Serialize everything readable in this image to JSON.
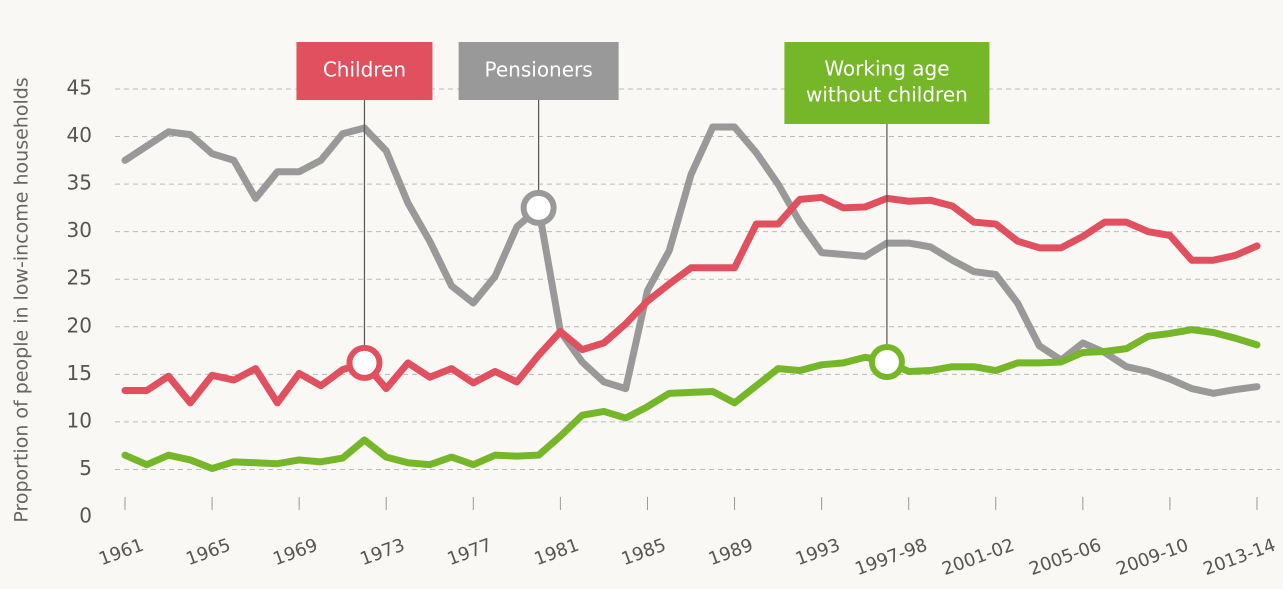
{
  "chart_data": {
    "type": "line",
    "y_label": "Proportion of people in low-income households",
    "categories": [
      "1961",
      null,
      null,
      null,
      "1965",
      null,
      null,
      null,
      "1969",
      null,
      null,
      null,
      "1973",
      null,
      null,
      null,
      "1977",
      null,
      null,
      null,
      "1981",
      null,
      null,
      null,
      "1985",
      null,
      null,
      null,
      "1989",
      null,
      null,
      null,
      "1993",
      null,
      null,
      null,
      "1997-98",
      null,
      null,
      null,
      "2001-02",
      null,
      null,
      null,
      "2005-06",
      null,
      null,
      null,
      "2009-10",
      null,
      null,
      null,
      "2013-14"
    ],
    "series": [
      {
        "name": "Children",
        "color": "#e0505e",
        "values": [
          13.3,
          13.3,
          14.8,
          12,
          14.9,
          14.4,
          15.6,
          12,
          15.1,
          13.8,
          15.5,
          16.2,
          13.5,
          16.2,
          14.7,
          15.6,
          14.1,
          15.3,
          14.2,
          17,
          19.5,
          17.6,
          18.3,
          20.3,
          22.7,
          24.5,
          26.2,
          26.2,
          26.2,
          30.8,
          30.8,
          33.4,
          33.6,
          32.5,
          32.6,
          33.5,
          33.2,
          33.3,
          32.7,
          31,
          30.8,
          29,
          28.3,
          28.3,
          29.5,
          31,
          31,
          30,
          29.6,
          27,
          27,
          27.5,
          28.5
        ]
      },
      {
        "name": "Pensioners",
        "color": "#999999",
        "values": [
          37.5,
          39,
          40.5,
          40.2,
          38.2,
          37.5,
          33.5,
          36.3,
          36.3,
          37.5,
          40.3,
          40.9,
          38.5,
          33,
          29,
          24.3,
          22.5,
          25.3,
          30.5,
          32.5,
          19.5,
          16.3,
          14.2,
          13.5,
          23.8,
          28,
          36,
          41,
          41,
          38.3,
          35,
          31,
          27.8,
          27.6,
          27.4,
          28.8,
          28.8,
          28.4,
          27,
          25.8,
          25.5,
          22.5,
          18,
          16.5,
          18.3,
          17.3,
          15.8,
          15.3,
          14.5,
          13.5,
          13,
          13.4,
          13.7
        ]
      },
      {
        "name": "Working age without children",
        "color": "#76b72a",
        "values": [
          6.5,
          5.5,
          6.5,
          6,
          5.1,
          5.8,
          5.7,
          5.6,
          6,
          5.8,
          6.2,
          8.1,
          6.3,
          5.7,
          5.5,
          6.3,
          5.5,
          6.5,
          6.4,
          6.5,
          8.5,
          10.7,
          11.1,
          10.4,
          11.6,
          13,
          13.1,
          13.2,
          12,
          13.8,
          15.6,
          15.4,
          16,
          16.2,
          16.8,
          16.3,
          15.3,
          15.4,
          15.8,
          15.8,
          15.4,
          16.2,
          16.2,
          16.3,
          17.3,
          17.4,
          17.7,
          19,
          19.3,
          19.7,
          19.4,
          18.8,
          18.1
        ]
      }
    ],
    "annotations": [
      {
        "lines": [
          "Children"
        ],
        "series": 0,
        "index": 11
      },
      {
        "lines": [
          "Pensioners"
        ],
        "series": 1,
        "index": 19
      },
      {
        "lines": [
          "Working age",
          "without children"
        ],
        "series": 2,
        "index": 35
      }
    ],
    "ylim": [
      0,
      45
    ],
    "yticks": [
      0,
      5,
      10,
      15,
      20,
      25,
      30,
      35,
      40,
      45
    ],
    "grid": true
  }
}
